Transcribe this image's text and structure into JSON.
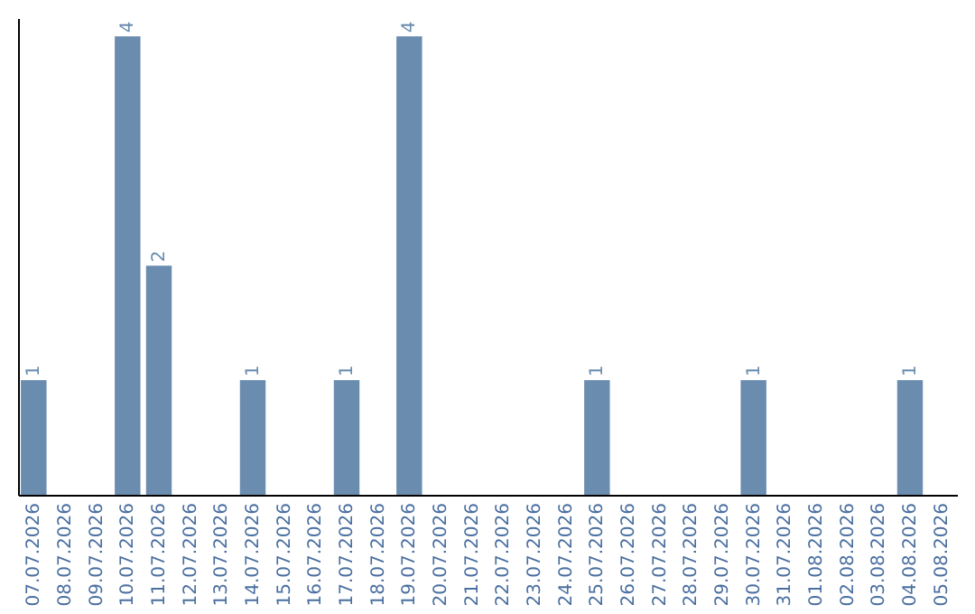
{
  "chart_data": {
    "type": "bar",
    "categories": [
      "07.07.2026",
      "08.07.2026",
      "09.07.2026",
      "10.07.2026",
      "11.07.2026",
      "12.07.2026",
      "13.07.2026",
      "14.07.2026",
      "15.07.2026",
      "16.07.2026",
      "17.07.2026",
      "18.07.2026",
      "19.07.2026",
      "20.07.2026",
      "21.07.2026",
      "22.07.2026",
      "23.07.2026",
      "24.07.2026",
      "25.07.2026",
      "26.07.2026",
      "27.07.2026",
      "28.07.2026",
      "29.07.2026",
      "30.07.2026",
      "31.07.2026",
      "01.08.2026",
      "02.08.2026",
      "03.08.2026",
      "04.08.2026",
      "05.08.2026"
    ],
    "values": [
      1,
      0,
      0,
      4,
      2,
      0,
      0,
      1,
      0,
      0,
      1,
      0,
      4,
      0,
      0,
      0,
      0,
      0,
      1,
      0,
      0,
      0,
      0,
      1,
      0,
      0,
      0,
      0,
      1,
      0
    ],
    "value_labels": [
      "1",
      null,
      null,
      "4",
      "2",
      null,
      null,
      "1",
      null,
      null,
      "1",
      null,
      "4",
      null,
      null,
      null,
      null,
      null,
      "1",
      null,
      null,
      null,
      null,
      "1",
      null,
      null,
      null,
      null,
      "1",
      null
    ],
    "color": "#6a8caf",
    "ylim": [
      0,
      4.16
    ],
    "tick_labels": "x",
    "grid": false
  }
}
